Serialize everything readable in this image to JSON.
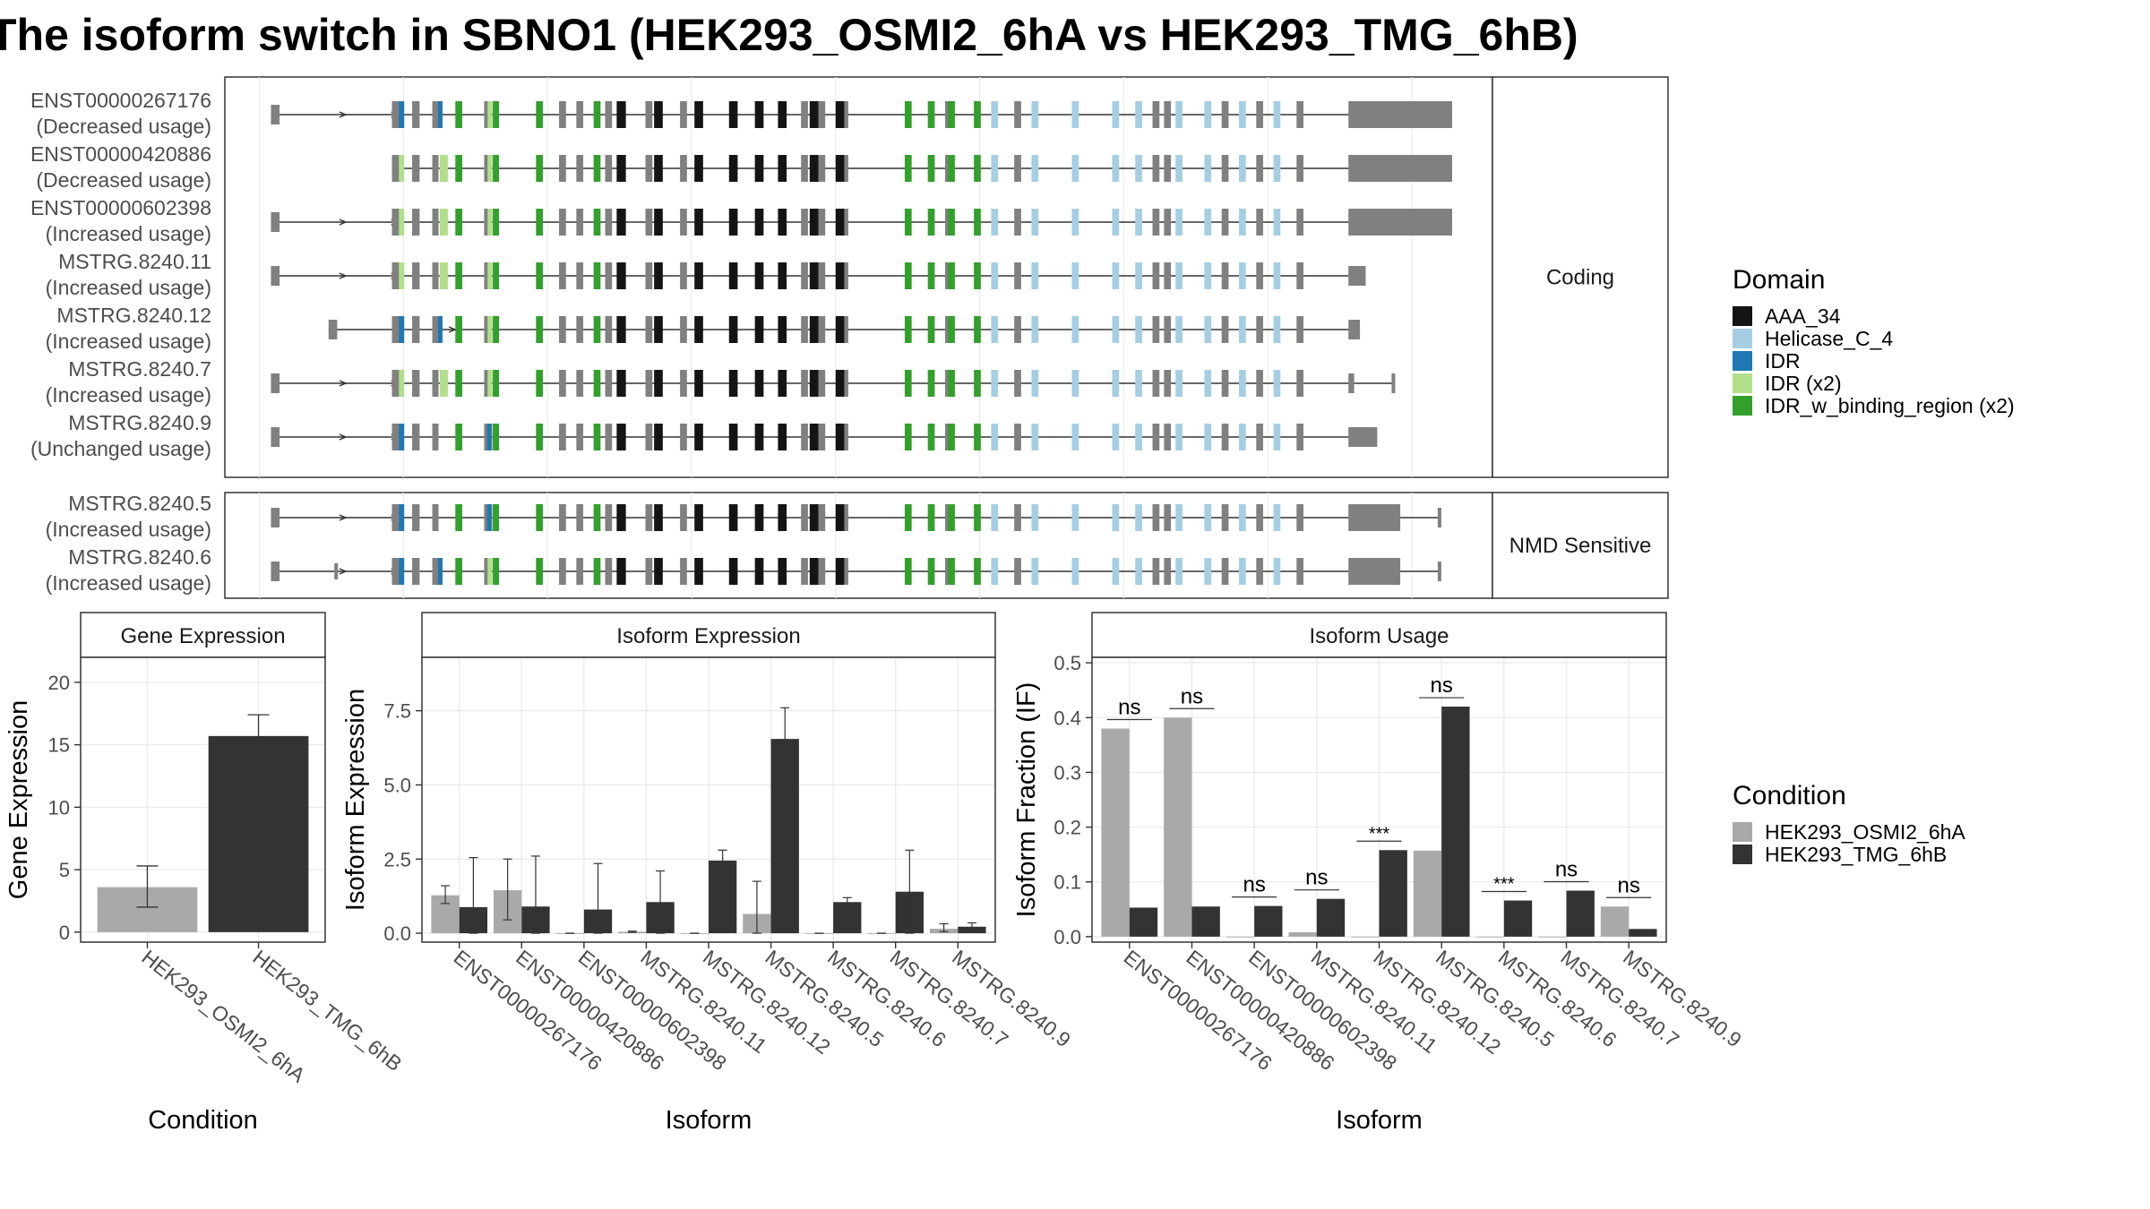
{
  "title": "The isoform switch in SBNO1 (HEK293_OSMI2_6hA vs HEK293_TMG_6hB)",
  "colors": {
    "AAA_34": "#141414",
    "Helicase_C_4": "#a6cee3",
    "IDR": "#1f78b4",
    "IDR (x2)": "#b2df8a",
    "IDR_w_binding_region (x2)": "#33a02c",
    "exon": "#808080",
    "cond_a": "#a9a9a9",
    "cond_b": "#333333",
    "strip_bg": "#ffffff",
    "grid": "#ebebeb"
  },
  "structure": {
    "facets": [
      {
        "label": "Coding",
        "isoforms": [
          {
            "id": "ENST00000267176",
            "usage": "(Decreased usage)",
            "start": 2,
            "end": 207,
            "five_utr_exon": [
              2,
              3.5
            ],
            "blue1": true,
            "blue2": true,
            "blue3": false,
            "green1": "light",
            "green2": "light",
            "green3": "mixed",
            "tail": [
              189,
              207
            ],
            "tail_h": "full"
          },
          {
            "id": "ENST00000420886",
            "usage": "(Decreased usage)",
            "start": 23,
            "end": 207,
            "five_utr_exon": null,
            "blue1": false,
            "blue2": false,
            "blue3": false,
            "green1": "light",
            "green2": "light",
            "green3": "light",
            "tail": [
              189,
              207
            ],
            "tail_h": "full"
          },
          {
            "id": "ENST00000602398",
            "usage": "(Increased usage)",
            "start": 2,
            "end": 207,
            "five_utr_exon": [
              2,
              3.5
            ],
            "blue1": false,
            "blue2": false,
            "blue3": false,
            "green1": "light",
            "green2": "light",
            "green3": "light",
            "tail": [
              189,
              207
            ],
            "tail_h": "full"
          },
          {
            "id": "MSTRG.8240.11",
            "usage": "(Increased usage)",
            "start": 2,
            "end": 192,
            "five_utr_exon": [
              2,
              3.5
            ],
            "blue1": false,
            "blue2": false,
            "blue3": false,
            "green1": "light",
            "green2": "light",
            "green3": "light",
            "tail": [
              189,
              192
            ],
            "tail_h": "small"
          },
          {
            "id": "MSTRG.8240.12",
            "usage": "(Increased usage)",
            "start": 12,
            "end": 191,
            "five_utr_exon": [
              12,
              13.5
            ],
            "blue1": true,
            "blue2": true,
            "blue3": false,
            "green1": "none",
            "green2": "none",
            "green3": "mixed",
            "tail": [
              189,
              191
            ],
            "tail_h": "small"
          },
          {
            "id": "MSTRG.8240.7",
            "usage": "(Increased usage)",
            "start": 2,
            "end": 197,
            "five_utr_exon": [
              2,
              3.5
            ],
            "blue1": false,
            "blue2": false,
            "blue3": false,
            "green1": "light",
            "green2": "light",
            "green3": "light",
            "tail": [
              189,
              190
            ],
            "tail_h": "small",
            "extra_exon": [
              196.5,
              197
            ]
          },
          {
            "id": "MSTRG.8240.9",
            "usage": "(Unchanged usage)",
            "start": 2,
            "end": 194,
            "five_utr_exon": [
              2,
              3.5
            ],
            "blue1": true,
            "blue2": false,
            "blue3": true,
            "green1": "none",
            "green2": "none",
            "green3": "green",
            "tail": [
              189,
              194
            ],
            "tail_h": "small"
          }
        ]
      },
      {
        "label": "NMD Sensitive",
        "isoforms": [
          {
            "id": "MSTRG.8240.5",
            "usage": "(Increased usage)",
            "start": 2,
            "end": 205,
            "five_utr_exon": [
              2,
              3.5
            ],
            "blue1": true,
            "blue2": false,
            "blue3": true,
            "green1": "none",
            "green2": "none",
            "green3": "green",
            "tail": [
              189,
              198
            ],
            "tail_h": "full",
            "extra_exon": [
              204.5,
              205
            ]
          },
          {
            "id": "MSTRG.8240.6",
            "usage": "(Increased usage)",
            "start": 2,
            "end": 205,
            "five_utr_exon": [
              2,
              3.5
            ],
            "blue1": true,
            "blue2": true,
            "blue3": false,
            "green1": "none",
            "green2": "none",
            "green3": "mixed",
            "tail": [
              189,
              198
            ],
            "tail_h": "full",
            "extra_exon": [
              204.5,
              205
            ],
            "small_exon": [
              13,
              13.5
            ]
          }
        ]
      }
    ]
  },
  "domain_legend": {
    "title": "Domain",
    "items": [
      "AAA_34",
      "Helicase_C_4",
      "IDR",
      "IDR (x2)",
      "IDR_w_binding_region (x2)"
    ]
  },
  "condition_legend": {
    "title": "Condition",
    "items": [
      "HEK293_OSMI2_6hA",
      "HEK293_TMG_6hB"
    ]
  },
  "chart_data": [
    {
      "type": "bar",
      "title": "Gene Expression",
      "xlabel": "Condition",
      "ylabel": "Gene Expression",
      "ylim": [
        -0.8,
        22
      ],
      "yticks": [
        0,
        5,
        10,
        15,
        20
      ],
      "categories": [
        "HEK293_OSMI2_6hA",
        "HEK293_TMG_6hB"
      ],
      "values": [
        3.6,
        15.7
      ],
      "errors": [
        [
          2.0,
          5.3
        ],
        [
          14.1,
          17.4
        ]
      ]
    },
    {
      "type": "bar",
      "title": "Isoform Expression",
      "xlabel": "Isoform",
      "ylabel": "Isoform Expression",
      "ylim": [
        -0.3,
        9.3
      ],
      "yticks": [
        "0.0",
        "2.5",
        "5.0",
        "7.5"
      ],
      "categories": [
        "ENST00000267176",
        "ENST00000420886",
        "ENST00000602398",
        "MSTRG.8240.11",
        "MSTRG.8240.12",
        "MSTRG.8240.5",
        "MSTRG.8240.6",
        "MSTRG.8240.7",
        "MSTRG.8240.9"
      ],
      "series": [
        {
          "name": "HEK293_OSMI2_6hA",
          "values": [
            1.28,
            1.45,
            0.0,
            0.05,
            0.0,
            0.65,
            0.0,
            0.0,
            0.15
          ],
          "errors": [
            [
              1.0,
              1.6
            ],
            [
              0.45,
              2.5
            ],
            [
              0.0,
              0.0
            ],
            [
              0.03,
              0.07
            ],
            [
              0.0,
              0.0
            ],
            [
              0.0,
              1.75
            ],
            [
              0.0,
              0.0
            ],
            [
              0.0,
              0.0
            ],
            [
              0.05,
              0.32
            ]
          ]
        },
        {
          "name": "HEK293_TMG_6hB",
          "values": [
            0.88,
            0.9,
            0.8,
            1.05,
            2.45,
            6.55,
            1.05,
            1.4,
            0.22
          ],
          "errors": [
            [
              0.0,
              2.55
            ],
            [
              0.0,
              2.6
            ],
            [
              0.0,
              2.35
            ],
            [
              0.0,
              2.1
            ],
            [
              2.15,
              2.8
            ],
            [
              5.5,
              7.6
            ],
            [
              0.9,
              1.2
            ],
            [
              0.0,
              2.8
            ],
            [
              0.1,
              0.35
            ]
          ]
        }
      ]
    },
    {
      "type": "bar",
      "title": "Isoform Usage",
      "xlabel": "Isoform",
      "ylabel": "Isoform Fraction (IF)",
      "ylim": [
        -0.01,
        0.51
      ],
      "yticks": [
        "0.0",
        "0.1",
        "0.2",
        "0.3",
        "0.4",
        "0.5"
      ],
      "categories": [
        "ENST00000267176",
        "ENST00000420886",
        "ENST00000602398",
        "MSTRG.8240.11",
        "MSTRG.8240.12",
        "MSTRG.8240.5",
        "MSTRG.8240.6",
        "MSTRG.8240.7",
        "MSTRG.8240.9"
      ],
      "series": [
        {
          "name": "HEK293_OSMI2_6hA",
          "values": [
            0.38,
            0.4,
            0.0,
            0.008,
            0.0,
            0.157,
            0.0,
            0.0,
            0.055
          ]
        },
        {
          "name": "HEK293_TMG_6hB",
          "values": [
            0.053,
            0.055,
            0.056,
            0.069,
            0.158,
            0.42,
            0.066,
            0.084,
            0.014
          ]
        }
      ],
      "significance": [
        "ns",
        "ns",
        "ns",
        "ns",
        "***",
        "ns",
        "***",
        "ns",
        "ns"
      ]
    }
  ]
}
